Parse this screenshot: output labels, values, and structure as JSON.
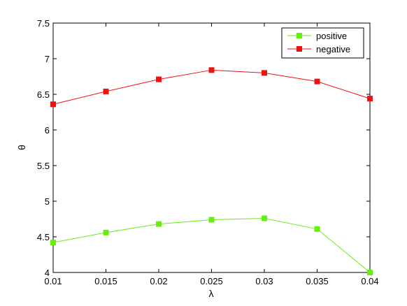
{
  "chart_data": {
    "type": "line",
    "xlabel": "λ",
    "ylabel": "θ",
    "xlim": [
      0.01,
      0.04
    ],
    "ylim": [
      4,
      7.5
    ],
    "x": [
      0.01,
      0.015,
      0.02,
      0.025,
      0.03,
      0.035,
      0.04
    ],
    "x_tick_labels": [
      "0.01",
      "0.015",
      "0.02",
      "0.025",
      "0.03",
      "0.035",
      "0.04"
    ],
    "y_ticks": [
      4,
      4.5,
      5,
      5.5,
      6,
      6.5,
      7,
      7.5
    ],
    "y_tick_labels": [
      "4",
      "4.5",
      "5",
      "5.5",
      "6",
      "6.5",
      "7",
      "7.5"
    ],
    "grid": false,
    "legend_position": "top-right",
    "series": [
      {
        "name": "positive",
        "color": "#66ee11",
        "marker": "square",
        "values": [
          4.42,
          4.56,
          4.68,
          4.74,
          4.76,
          4.61,
          4.0
        ]
      },
      {
        "name": "negative",
        "color": "#ee1111",
        "marker": "square",
        "values": [
          6.36,
          6.54,
          6.71,
          6.84,
          6.8,
          6.68,
          6.44
        ]
      }
    ]
  }
}
